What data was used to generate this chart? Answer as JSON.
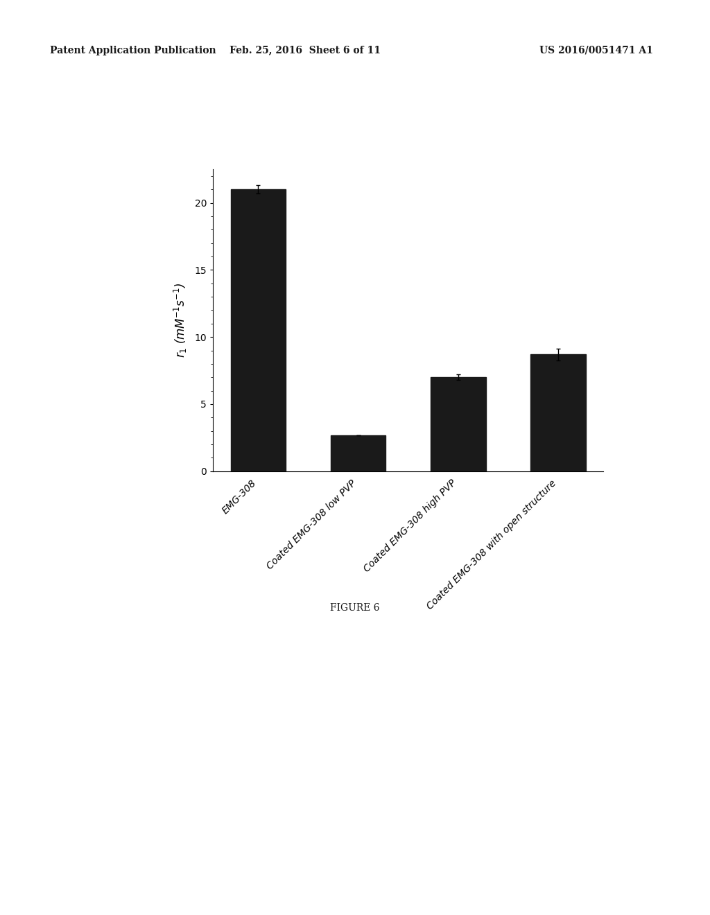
{
  "header_left": "Patent Application Publication",
  "header_center": "Feb. 25, 2016  Sheet 6 of 11",
  "header_right": "US 2016/0051471 A1",
  "categories": [
    "EMG-308",
    "Coated EMG-308 low PVP",
    "Coated EMG-308 high PVP",
    "Coated EMG-308 with open structure"
  ],
  "values": [
    21.0,
    2.7,
    7.0,
    8.7
  ],
  "errors": [
    0.3,
    0.0,
    0.2,
    0.45
  ],
  "bar_color": "#1a1a1a",
  "bar_width": 0.55,
  "ylabel": "$r_1$ (mM$^{-1}$s$^{-1}$)",
  "ylim": [
    0,
    22.5
  ],
  "yticks": [
    0,
    5,
    10,
    15,
    20
  ],
  "figure_caption": "FIGURE 6",
  "background_color": "#ffffff",
  "header_fontsize": 10,
  "axis_fontsize": 12,
  "tick_fontsize": 10,
  "caption_fontsize": 10
}
